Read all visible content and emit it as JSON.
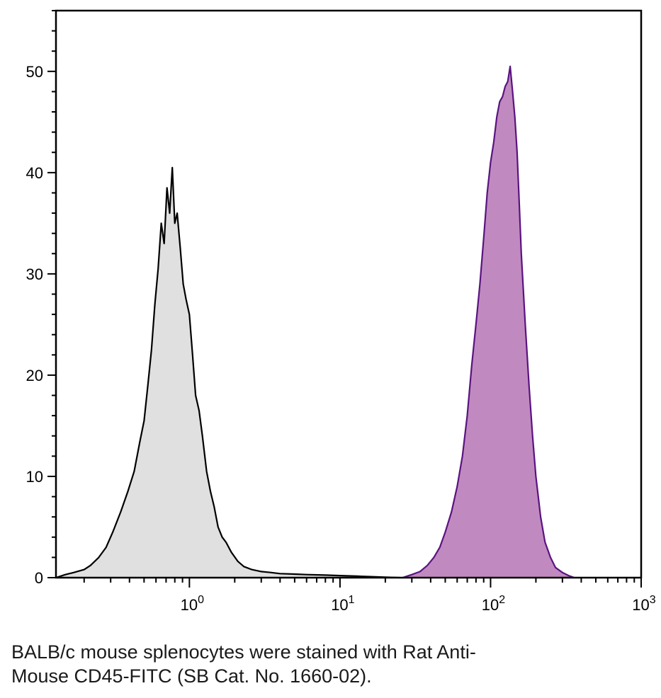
{
  "chart_data": {
    "type": "area",
    "title": "",
    "xlabel": "",
    "ylabel": "",
    "x_scale": "log",
    "xlim": [
      0.13,
      1000
    ],
    "ylim": [
      0,
      56
    ],
    "grid": false,
    "y_ticks": [
      0,
      10,
      20,
      30,
      40,
      50
    ],
    "x_ticks": [
      {
        "base": "10",
        "exp": "0",
        "value": 1
      },
      {
        "base": "10",
        "exp": "1",
        "value": 10
      },
      {
        "base": "10",
        "exp": "2",
        "value": 100
      },
      {
        "base": "10",
        "exp": "3",
        "value": 1000
      }
    ],
    "series": [
      {
        "fill": "#e0e0e0",
        "stroke": "#000000",
        "x": [
          0.13,
          0.15,
          0.17,
          0.2,
          0.22,
          0.25,
          0.28,
          0.31,
          0.35,
          0.39,
          0.43,
          0.47,
          0.5,
          0.53,
          0.56,
          0.59,
          0.62,
          0.65,
          0.68,
          0.71,
          0.74,
          0.77,
          0.8,
          0.83,
          0.87,
          0.91,
          0.95,
          1.0,
          1.05,
          1.1,
          1.16,
          1.22,
          1.3,
          1.38,
          1.46,
          1.55,
          1.65,
          1.75,
          1.9,
          2.1,
          2.3,
          2.6,
          3.0,
          3.5,
          4.0,
          5.0,
          6.0,
          8.0,
          10,
          13,
          16,
          20,
          25
        ],
        "y": [
          0,
          0.3,
          0.5,
          0.8,
          1.2,
          2.0,
          3.0,
          4.5,
          6.5,
          8.5,
          10.5,
          13.5,
          15.5,
          19.0,
          22.5,
          27.0,
          30.5,
          35.0,
          33.0,
          38.5,
          36.0,
          40.5,
          35.0,
          36.0,
          32.5,
          29.0,
          27.5,
          26.0,
          22.0,
          18.0,
          16.5,
          14.0,
          10.5,
          8.5,
          7.0,
          5.0,
          4.0,
          3.5,
          2.5,
          1.6,
          1.1,
          0.8,
          0.6,
          0.5,
          0.4,
          0.35,
          0.3,
          0.25,
          0.2,
          0.15,
          0.1,
          0.05,
          0
        ]
      },
      {
        "fill": "#c08ac0",
        "stroke": "#5a1380",
        "x": [
          26,
          30,
          34,
          38,
          42,
          46,
          50,
          55,
          60,
          65,
          70,
          75,
          80,
          85,
          90,
          95,
          100,
          105,
          110,
          115,
          120,
          125,
          130,
          135,
          140,
          145,
          150,
          155,
          160,
          170,
          180,
          190,
          200,
          215,
          230,
          250,
          270,
          300,
          330,
          360
        ],
        "y": [
          0,
          0.3,
          0.6,
          1.2,
          2.0,
          3.0,
          4.5,
          6.5,
          9.0,
          12.0,
          16.0,
          21.0,
          25.0,
          29.0,
          33.5,
          38.0,
          41.0,
          43.0,
          45.5,
          47.0,
          47.5,
          48.5,
          49.0,
          50.5,
          48.0,
          45.5,
          42.0,
          37.0,
          32.0,
          25.0,
          19.0,
          14.0,
          10.0,
          6.0,
          3.5,
          2.0,
          1.0,
          0.5,
          0.2,
          0
        ]
      }
    ]
  },
  "caption": {
    "line1": "BALB/c mouse splenocytes were stained with Rat Anti-",
    "line2": "Mouse CD45-FITC (SB Cat. No. 1660-02)."
  }
}
